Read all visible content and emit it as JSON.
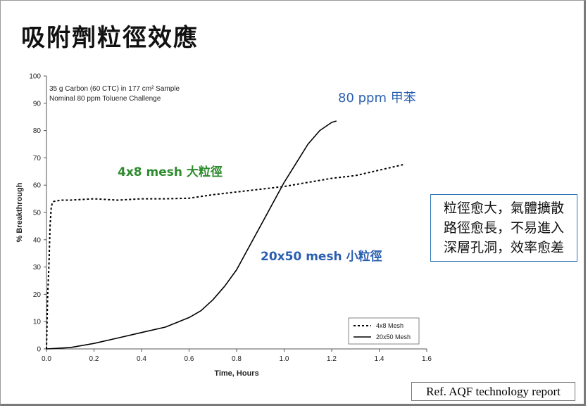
{
  "slide": {
    "title": "吸附劑粒徑效應",
    "callout_lines": [
      "粒徑愈大，氣體擴散",
      "路徑愈長，不易進入",
      "深層孔洞，效率愈差"
    ],
    "reference": "Ref. AQF technology report"
  },
  "colors": {
    "green_label": "#2e8b2e",
    "blue_label": "#2a5fb0",
    "callout_border": "#2e75b6"
  },
  "chart_data": {
    "type": "line",
    "xlabel": "Time, Hours",
    "ylabel": "% Breakthrough",
    "xlim": [
      0,
      1.6
    ],
    "ylim": [
      0,
      100
    ],
    "x_ticks": [
      "0.0",
      "0.2",
      "0.4",
      "0.6",
      "0.8",
      "1.0",
      "1.2",
      "1.4",
      "1.6"
    ],
    "y_ticks": [
      "0",
      "10",
      "20",
      "30",
      "40",
      "50",
      "60",
      "70",
      "80",
      "90",
      "100"
    ],
    "grid": false,
    "legend_position": "bottom-right",
    "annotation_lines": [
      "35 g Carbon (60 CTC) in 177 cm² Sample",
      "Nominal 80 ppm Toluene Challenge"
    ],
    "callouts": {
      "toluene": "80 ppm 甲苯",
      "large": "4x8 mesh 大粒徑",
      "small": "20x50 mesh 小粒徑"
    },
    "series": [
      {
        "name": "4x8 Mesh",
        "style": "dashed",
        "x": [
          0.0,
          0.005,
          0.01,
          0.015,
          0.02,
          0.025,
          0.03,
          0.04,
          0.06,
          0.1,
          0.2,
          0.3,
          0.4,
          0.5,
          0.6,
          0.7,
          0.8,
          0.9,
          1.0,
          1.1,
          1.2,
          1.3,
          1.4,
          1.5
        ],
        "y": [
          0,
          20,
          30,
          45,
          52,
          53.5,
          54,
          54.2,
          54.5,
          54.5,
          55,
          54.5,
          55,
          55,
          55.2,
          56.5,
          57.5,
          58.5,
          59.5,
          61,
          62.5,
          63.5,
          65.5,
          67.5
        ]
      },
      {
        "name": "20x50 Mesh",
        "style": "solid",
        "x": [
          0.0,
          0.1,
          0.2,
          0.3,
          0.4,
          0.5,
          0.6,
          0.65,
          0.7,
          0.75,
          0.8,
          0.85,
          0.9,
          0.95,
          1.0,
          1.05,
          1.1,
          1.15,
          1.2,
          1.22
        ],
        "y": [
          0,
          0.5,
          2,
          4,
          6,
          8,
          11.5,
          14,
          18,
          23,
          29,
          37,
          45,
          53,
          61,
          68,
          75,
          80,
          83,
          83.5
        ]
      }
    ]
  }
}
